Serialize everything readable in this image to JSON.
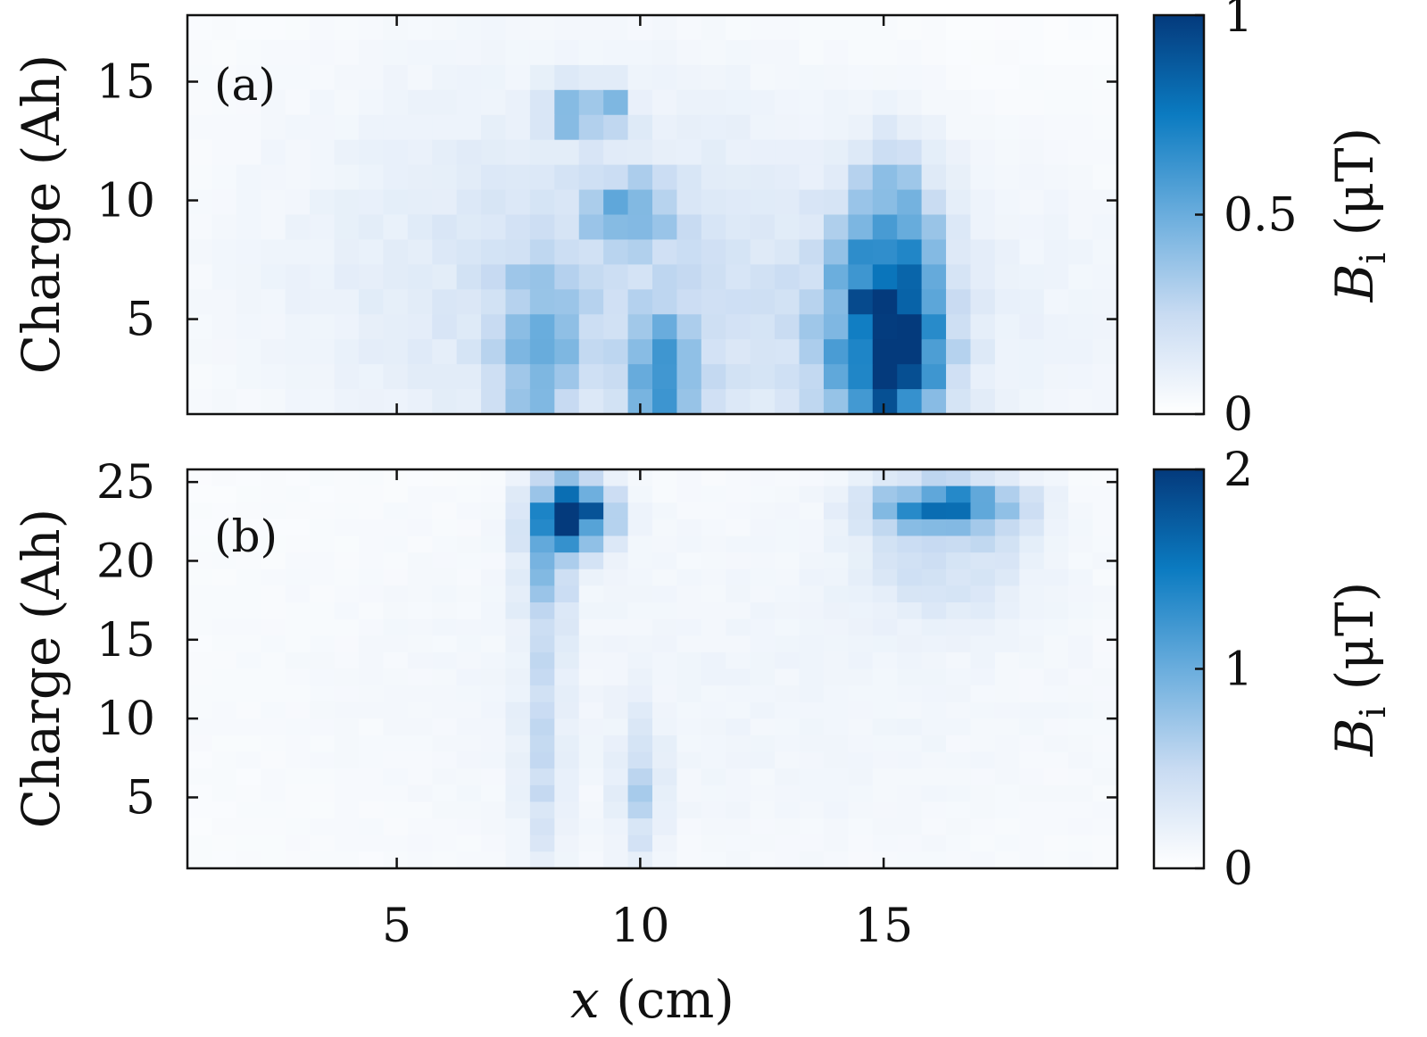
{
  "chart_data": [
    {
      "type": "heatmap",
      "panel_label": "(a)",
      "ylabel": "Charge (Ah)",
      "xlabel": "",
      "x_range": [
        0.7,
        19.8
      ],
      "y_range": [
        1.0,
        17.8
      ],
      "x_ticks": [
        5,
        10,
        15
      ],
      "y_ticks": [
        5,
        10,
        15
      ],
      "x_tick_labels_visible": false,
      "colorbar": {
        "label_main": "B",
        "label_sub": "i",
        "label_unit": "(μT)",
        "min": 0,
        "max": 1,
        "ticks": [
          0,
          0.5,
          1
        ],
        "tick_labels": [
          "0",
          "0.5",
          "1"
        ]
      },
      "colormap": [
        "#ffffff",
        "#c8dbf2",
        "#6aaddd",
        "#0b7bc1",
        "#043a7c"
      ],
      "hotspots": [
        {
          "x": 8.5,
          "y": 13.8,
          "sx": 0.3,
          "sy": 0.7,
          "v": 0.45
        },
        {
          "x": 9.3,
          "y": 13.8,
          "sx": 0.3,
          "sy": 0.7,
          "v": 0.4
        },
        {
          "x": 9.8,
          "y": 9.6,
          "sx": 0.6,
          "sy": 0.9,
          "v": 0.42
        },
        {
          "x": 10.5,
          "y": 2.5,
          "sx": 0.5,
          "sy": 2.0,
          "v": 0.45
        },
        {
          "x": 7.9,
          "y": 3.5,
          "sx": 0.6,
          "sy": 2.5,
          "v": 0.35
        },
        {
          "x": 15.0,
          "y": 3.8,
          "sx": 0.8,
          "sy": 3.0,
          "v": 0.78
        },
        {
          "x": 15.6,
          "y": 3.2,
          "sx": 0.4,
          "sy": 1.6,
          "v": 0.3
        },
        {
          "x": 15.2,
          "y": 8.5,
          "sx": 0.6,
          "sy": 2.5,
          "v": 0.35
        },
        {
          "x": 12.5,
          "y": 5.0,
          "sx": 5.0,
          "sy": 5.0,
          "v": 0.12
        },
        {
          "x": 8.0,
          "y": 8.0,
          "sx": 4.0,
          "sy": 6.0,
          "v": 0.1
        }
      ]
    },
    {
      "type": "heatmap",
      "panel_label": "(b)",
      "ylabel": "Charge (Ah)",
      "xlabel": "x (cm)",
      "x_range": [
        0.7,
        19.8
      ],
      "y_range": [
        0.5,
        25.8
      ],
      "x_ticks": [
        5,
        10,
        15
      ],
      "y_ticks": [
        5,
        10,
        15,
        20,
        25
      ],
      "x_tick_labels": [
        "5",
        "10",
        "15"
      ],
      "colorbar": {
        "label_main": "B",
        "label_sub": "i",
        "label_unit": "(μT)",
        "min": 0,
        "max": 2,
        "ticks": [
          0,
          1,
          2
        ],
        "tick_labels": [
          "0",
          "1",
          "2"
        ]
      },
      "colormap": [
        "#ffffff",
        "#c8dbf2",
        "#6aaddd",
        "#0b7bc1",
        "#043a7c"
      ],
      "hotspots": [
        {
          "x": 8.6,
          "y": 23.0,
          "sx": 0.55,
          "sy": 1.5,
          "v": 1.85
        },
        {
          "x": 8.1,
          "y": 19.5,
          "sx": 0.35,
          "sy": 2.5,
          "v": 0.7
        },
        {
          "x": 8.0,
          "y": 9.0,
          "sx": 0.3,
          "sy": 6.0,
          "v": 0.4
        },
        {
          "x": 10.0,
          "y": 5.5,
          "sx": 0.3,
          "sy": 3.0,
          "v": 0.45
        },
        {
          "x": 16.3,
          "y": 23.5,
          "sx": 1.0,
          "sy": 1.2,
          "v": 1.3
        },
        {
          "x": 16.3,
          "y": 20.0,
          "sx": 1.2,
          "sy": 2.5,
          "v": 0.35
        },
        {
          "x": 12.0,
          "y": 12.0,
          "sx": 7.0,
          "sy": 10.0,
          "v": 0.1
        }
      ]
    }
  ],
  "axes": {
    "panel_a": {
      "y_tick_labels": [
        "5",
        "10",
        "15"
      ]
    },
    "panel_b": {
      "y_tick_labels": [
        "5",
        "10",
        "15",
        "20",
        "25"
      ]
    }
  }
}
